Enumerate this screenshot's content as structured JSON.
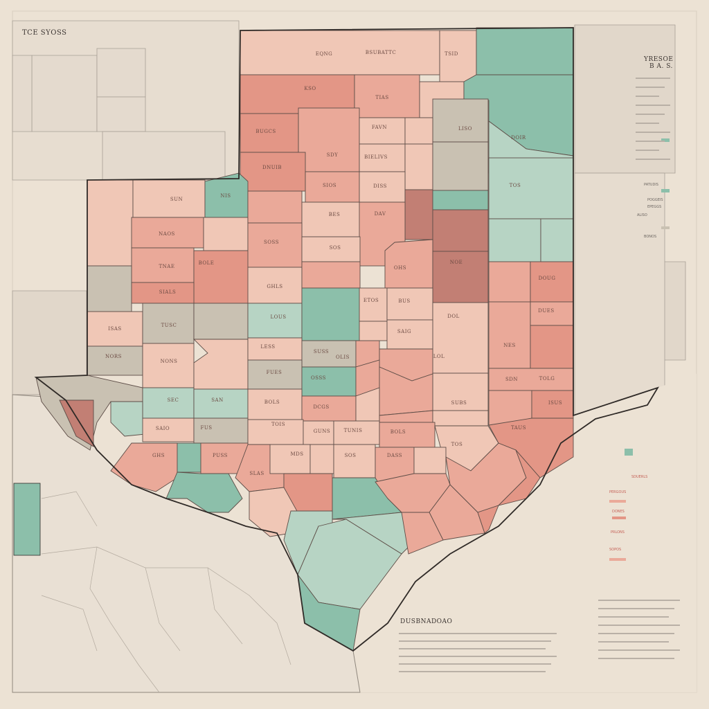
{
  "map": {
    "corner_title": "TCE SYOSS",
    "legend_title_1": "YRESOE",
    "legend_title_2": "B A. S.",
    "bottom_heading": "DUSBNADOAO",
    "colors": {
      "paper": "#ece2d4",
      "pink_light": "#f0c7b6",
      "pink": "#eaa999",
      "salmon": "#e39686",
      "rose": "#c27f74",
      "teal_light": "#b7d4c4",
      "teal": "#8cbfaa",
      "grey": "#c9c1b2",
      "outline": "#2f2a27"
    },
    "labels": [
      "EQNG",
      "BSUBATTC",
      "TSID",
      "KSO",
      "TIAS",
      "BUGCS",
      "FAVN",
      "LISO",
      "SDY",
      "BIELIVS",
      "DOIR",
      "DNUIB",
      "SIOS",
      "DISS",
      "TOS",
      "SUN",
      "NIS",
      "NAOS",
      "DAV",
      "BES",
      "SOSS",
      "SOS",
      "OHS",
      "NOE",
      "TNAE",
      "BOLE",
      "GHLS",
      "DOUG",
      "SIALS",
      "ETOS",
      "DOL",
      "BUS",
      "ISAS",
      "TUSC",
      "LOUS",
      "DUES",
      "NES",
      "SAIG",
      "NORS",
      "NONS",
      "LESS",
      "SUSS",
      "OLIS",
      "LOL",
      "FUES",
      "OSSS",
      "SDN",
      "TOLG",
      "SEC",
      "SAN",
      "BOLS",
      "DCGS",
      "SUBS",
      "ISUS",
      "SAIO",
      "FUS",
      "TOIS",
      "GUNS",
      "TUNIS",
      "TAUS",
      "BOLS",
      "TOS",
      "GHS",
      "PUSS",
      "SLAS",
      "MDS",
      "SOS",
      "DASS"
    ],
    "legend_rows": [
      "PATUDIS",
      "POGGEIS",
      "EPEGGS",
      "ALISO",
      "BONOS",
      "SDUERLS",
      "PERGOUS",
      "DONES",
      "PRLONS",
      "SOPOS"
    ]
  }
}
